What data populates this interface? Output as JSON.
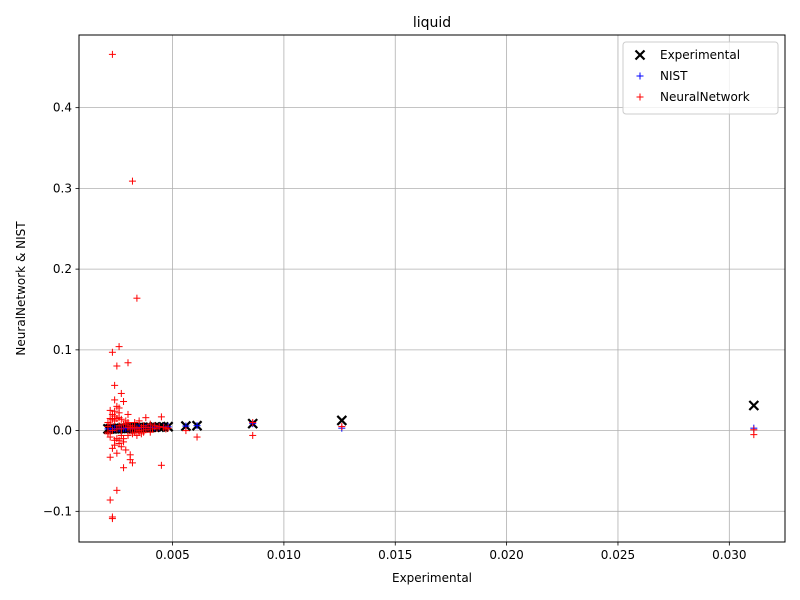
{
  "chart_data": {
    "type": "scatter",
    "title": "liquid",
    "xlabel": "Experimental",
    "ylabel": "NeuralNetwork & NIST",
    "xlim": [
      0.0008,
      0.0325
    ],
    "ylim": [
      -0.138,
      0.49
    ],
    "xticks": [
      {
        "value": 0.005,
        "label": "0.005"
      },
      {
        "value": 0.01,
        "label": "0.010"
      },
      {
        "value": 0.015,
        "label": "0.015"
      },
      {
        "value": 0.02,
        "label": "0.020"
      },
      {
        "value": 0.025,
        "label": "0.025"
      },
      {
        "value": 0.03,
        "label": "0.030"
      }
    ],
    "yticks": [
      {
        "value": -0.1,
        "label": "−0.1"
      },
      {
        "value": 0.0,
        "label": "0.0"
      },
      {
        "value": 0.1,
        "label": "0.1"
      },
      {
        "value": 0.2,
        "label": "0.2"
      },
      {
        "value": 0.3,
        "label": "0.3"
      },
      {
        "value": 0.4,
        "label": "0.4"
      }
    ],
    "grid": true,
    "legend_position": "top-right",
    "series": [
      {
        "name": "Experimental",
        "marker": "x",
        "color": "#000000",
        "x": [
          0.0021,
          0.0022,
          0.0023,
          0.0024,
          0.0025,
          0.0026,
          0.0027,
          0.0028,
          0.0029,
          0.003,
          0.0031,
          0.0032,
          0.0033,
          0.0034,
          0.0035,
          0.0036,
          0.0037,
          0.0038,
          0.0039,
          0.004,
          0.0042,
          0.0044,
          0.0046,
          0.0048,
          0.0056,
          0.0061,
          0.0086,
          0.0126,
          0.0311
        ],
        "y": [
          0.0021,
          0.0022,
          0.0023,
          0.0024,
          0.0025,
          0.0026,
          0.0027,
          0.0028,
          0.0029,
          0.003,
          0.0031,
          0.0032,
          0.0033,
          0.0034,
          0.0035,
          0.0036,
          0.0037,
          0.0038,
          0.0039,
          0.004,
          0.0042,
          0.0044,
          0.0046,
          0.0048,
          0.0056,
          0.0061,
          0.0086,
          0.0126,
          0.0311
        ]
      },
      {
        "name": "NIST",
        "marker": "+",
        "color": "#0000ff",
        "x": [
          0.0021,
          0.0022,
          0.0023,
          0.0024,
          0.0025,
          0.0026,
          0.0027,
          0.0028,
          0.0029,
          0.003,
          0.0031,
          0.0032,
          0.0033,
          0.0034,
          0.0035,
          0.0036,
          0.0037,
          0.0038,
          0.0039,
          0.004,
          0.0042,
          0.0044,
          0.0046,
          0.0048,
          0.0056,
          0.0061,
          0.0086,
          0.0126,
          0.0311
        ],
        "y": [
          0.0021,
          0.0022,
          0.0023,
          0.0024,
          0.0025,
          0.0026,
          0.0027,
          0.0028,
          0.0029,
          0.003,
          0.0031,
          0.0032,
          0.0033,
          0.0034,
          0.0035,
          0.0036,
          0.0037,
          0.0038,
          0.0039,
          0.004,
          0.0042,
          0.0044,
          0.0046,
          0.0048,
          0.0056,
          0.0061,
          0.0086,
          0.003,
          0.003
        ]
      },
      {
        "name": "NeuralNetwork",
        "marker": "+",
        "color": "#ff0000",
        "x": [
          0.0023,
          0.0032,
          0.0034,
          0.0026,
          0.0023,
          0.003,
          0.0025,
          0.0024,
          0.0027,
          0.0024,
          0.0028,
          0.0022,
          0.0025,
          0.0026,
          0.0023,
          0.0024,
          0.003,
          0.0025,
          0.0022,
          0.0021,
          0.0026,
          0.0032,
          0.0031,
          0.0045,
          0.0028,
          0.0025,
          0.0022,
          0.0023,
          0.0023,
          0.0045,
          0.0038,
          0.0035,
          0.004,
          0.0042,
          0.0036,
          0.0033,
          0.0029,
          0.0027,
          0.0031,
          0.0034,
          0.0037,
          0.0039,
          0.0041,
          0.0043,
          0.0046,
          0.0048,
          0.0021,
          0.0022,
          0.0024,
          0.0026,
          0.0028,
          0.003,
          0.0032,
          0.0033,
          0.0035,
          0.0027,
          0.0029,
          0.0024,
          0.0022,
          0.0025,
          0.0023,
          0.0026,
          0.0028,
          0.003,
          0.0031,
          0.0034,
          0.0036,
          0.0038,
          0.004,
          0.0044,
          0.0047,
          0.0021,
          0.0023,
          0.0025,
          0.0027,
          0.0029,
          0.0032,
          0.0035,
          0.0037,
          0.0024,
          0.0026,
          0.0022,
          0.0028,
          0.003,
          0.0033,
          0.0021,
          0.0023,
          0.0025,
          0.0027,
          0.0024,
          0.0026,
          0.0031,
          0.0056,
          0.0061,
          0.0086,
          0.0086,
          0.0126,
          0.0311,
          0.0311
        ],
        "y": [
          0.466,
          0.309,
          0.164,
          0.104,
          0.097,
          0.084,
          0.08,
          0.056,
          0.046,
          0.038,
          0.036,
          0.025,
          0.03,
          0.022,
          0.02,
          0.018,
          0.02,
          0.015,
          0.015,
          0.005,
          -0.012,
          -0.04,
          -0.036,
          -0.043,
          -0.046,
          -0.074,
          -0.086,
          -0.107,
          -0.109,
          0.017,
          0.016,
          0.012,
          0.008,
          0.006,
          0.004,
          0.01,
          0.012,
          0.014,
          0.006,
          0.002,
          -0.002,
          0.004,
          0.002,
          0.003,
          0.004,
          0.003,
          -0.004,
          -0.008,
          -0.012,
          -0.016,
          -0.01,
          -0.006,
          -0.004,
          -0.002,
          0.0,
          -0.02,
          -0.024,
          -0.018,
          -0.033,
          -0.028,
          -0.022,
          0.006,
          0.008,
          0.004,
          0.002,
          -0.006,
          -0.004,
          0.001,
          -0.002,
          0.005,
          0.002,
          0.01,
          0.0,
          0.002,
          -0.006,
          0.008,
          0.004,
          -0.002,
          0.006,
          0.012,
          0.016,
          0.008,
          -0.014,
          0.01,
          0.004,
          -0.002,
          0.014,
          -0.01,
          0.002,
          0.024,
          0.028,
          -0.03,
          0.0,
          -0.008,
          0.01,
          -0.006,
          0.005,
          0.001,
          -0.005
        ]
      }
    ]
  }
}
